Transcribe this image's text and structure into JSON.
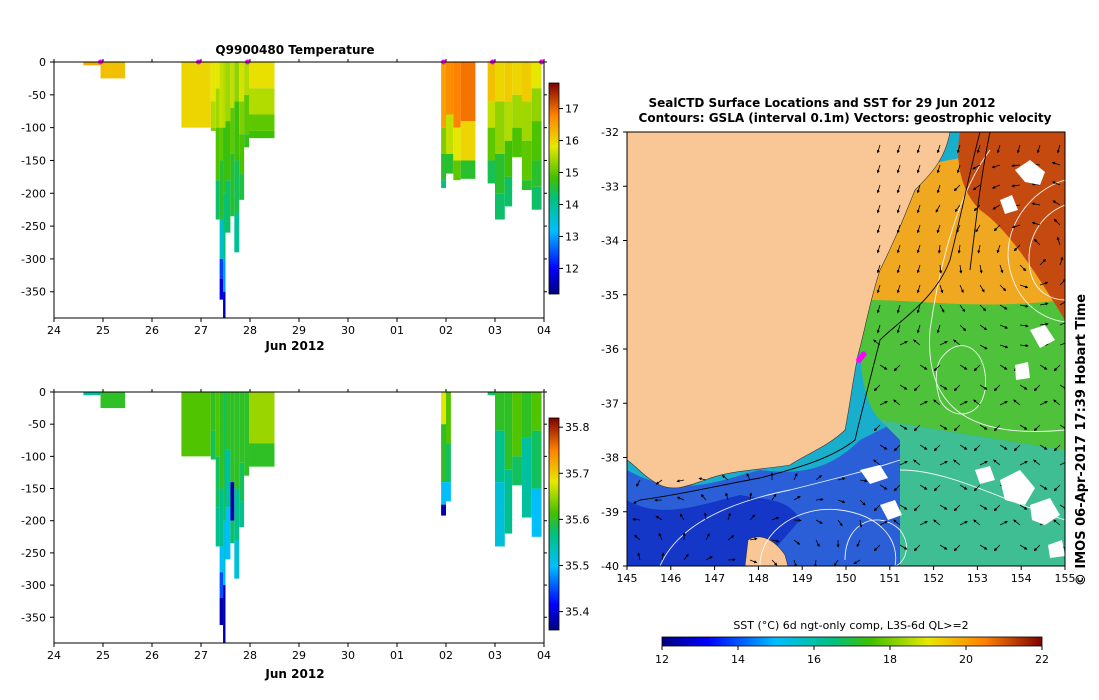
{
  "chart_data": [
    {
      "type": "heatmap",
      "id": "temperature",
      "title": "Q9900480  Temperature",
      "xlabel": "Jun 2012",
      "x_ticks": [
        "24",
        "25",
        "26",
        "27",
        "28",
        "29",
        "30",
        "01",
        "02",
        "03",
        "04"
      ],
      "y_ticks": [
        0,
        -50,
        -100,
        -150,
        -200,
        -250,
        -300,
        -350
      ],
      "ylim": [
        -390,
        0
      ],
      "colorbar": {
        "range": [
          11.2,
          17.8
        ],
        "ticks": [
          12,
          13,
          14,
          15,
          16,
          17
        ]
      },
      "profile_markers_day": [
        0.95,
        2.95,
        3.95,
        7.95,
        8.95,
        9.95
      ],
      "profiles": [
        {
          "x0": 0.6,
          "x1": 0.95,
          "segments": [
            [
              0,
              -5,
              16.4
            ]
          ]
        },
        {
          "x0": 0.95,
          "x1": 1.45,
          "segments": [
            [
              0,
              -25,
              16.2
            ]
          ]
        },
        {
          "x0": 2.6,
          "x1": 3.2,
          "segments": [
            [
              0,
              -100,
              16.0
            ]
          ]
        },
        {
          "x0": 3.2,
          "x1": 3.3,
          "segments": [
            [
              0,
              -60,
              15.8
            ],
            [
              -60,
              -100,
              15.5
            ],
            [
              -100,
              -105,
              15.2
            ]
          ]
        },
        {
          "x0": 3.3,
          "x1": 3.38,
          "segments": [
            [
              0,
              -40,
              15.8
            ],
            [
              -40,
              -100,
              15.4
            ],
            [
              -100,
              -180,
              14.9
            ],
            [
              -180,
              -240,
              14.3
            ]
          ]
        },
        {
          "x0": 3.38,
          "x1": 3.45,
          "segments": [
            [
              0,
              -100,
              15.6
            ],
            [
              -100,
              -150,
              15.0
            ],
            [
              -150,
              -240,
              14.6
            ],
            [
              -240,
              -300,
              13.6
            ],
            [
              -300,
              -330,
              12.4
            ],
            [
              -330,
              -362,
              11.8
            ]
          ]
        },
        {
          "x0": 3.45,
          "x1": 3.5,
          "segments": [
            [
              0,
              -100,
              15.5
            ],
            [
              -100,
              -200,
              14.7
            ],
            [
              -200,
              -300,
              14.2
            ],
            [
              -300,
              -350,
              13.0
            ],
            [
              -350,
              -390,
              11.5
            ]
          ]
        },
        {
          "x0": 3.5,
          "x1": 3.6,
          "segments": [
            [
              0,
              -90,
              15.4
            ],
            [
              -90,
              -180,
              14.8
            ],
            [
              -180,
              -260,
              14.3
            ]
          ]
        },
        {
          "x0": 3.6,
          "x1": 3.68,
          "segments": [
            [
              0,
              -70,
              15.6
            ],
            [
              -70,
              -140,
              15.0
            ],
            [
              -140,
              -235,
              14.6
            ]
          ]
        },
        {
          "x0": 3.68,
          "x1": 3.78,
          "segments": [
            [
              0,
              -60,
              15.3
            ],
            [
              -60,
              -150,
              14.8
            ],
            [
              -150,
              -230,
              14.4
            ],
            [
              -230,
              -290,
              14.0
            ]
          ]
        },
        {
          "x0": 3.78,
          "x1": 3.88,
          "segments": [
            [
              0,
              -60,
              15.7
            ],
            [
              -60,
              -110,
              15.2
            ],
            [
              -110,
              -170,
              14.9
            ],
            [
              -170,
              -210,
              14.5
            ]
          ]
        },
        {
          "x0": 3.88,
          "x1": 3.98,
          "segments": [
            [
              0,
              -50,
              15.5
            ],
            [
              -50,
              -110,
              15.0
            ],
            [
              -110,
              -130,
              14.7
            ]
          ]
        },
        {
          "x0": 3.98,
          "x1": 4.5,
          "segments": [
            [
              0,
              -40,
              15.9
            ],
            [
              -40,
              -80,
              15.5
            ],
            [
              -80,
              -105,
              15.0
            ],
            [
              -105,
              -116,
              14.8
            ]
          ]
        },
        {
          "x0": 7.9,
          "x1": 8.0,
          "segments": [
            [
              0,
              -100,
              16.5
            ],
            [
              -100,
              -140,
              15.2
            ],
            [
              -140,
              -180,
              14.6
            ],
            [
              -180,
              -192,
              14.2
            ]
          ]
        },
        {
          "x0": 8.0,
          "x1": 8.15,
          "segments": [
            [
              0,
              -80,
              16.7
            ],
            [
              -80,
              -140,
              15.6
            ],
            [
              -140,
              -170,
              14.6
            ]
          ]
        },
        {
          "x0": 8.15,
          "x1": 8.3,
          "segments": [
            [
              0,
              -100,
              16.8
            ],
            [
              -100,
              -150,
              15.8
            ],
            [
              -150,
              -180,
              15.0
            ]
          ]
        },
        {
          "x0": 8.3,
          "x1": 8.6,
          "segments": [
            [
              0,
              -90,
              16.9
            ],
            [
              -90,
              -150,
              16.0
            ],
            [
              -150,
              -178,
              14.6
            ]
          ]
        },
        {
          "x0": 8.85,
          "x1": 9.0,
          "segments": [
            [
              0,
              -60,
              16.2
            ],
            [
              -60,
              -100,
              15.6
            ],
            [
              -100,
              -150,
              15.0
            ],
            [
              -150,
              -185,
              14.4
            ]
          ]
        },
        {
          "x0": 9.0,
          "x1": 9.2,
          "segments": [
            [
              0,
              -60,
              16.0
            ],
            [
              -60,
              -140,
              15.3
            ],
            [
              -140,
              -200,
              14.6
            ],
            [
              -200,
              -240,
              14.3
            ]
          ]
        },
        {
          "x0": 9.2,
          "x1": 9.35,
          "segments": [
            [
              0,
              -60,
              16.1
            ],
            [
              -60,
              -120,
              15.5
            ],
            [
              -120,
              -175,
              14.8
            ],
            [
              -175,
              -220,
              14.3
            ]
          ]
        },
        {
          "x0": 9.35,
          "x1": 9.55,
          "segments": [
            [
              0,
              -50,
              16.0
            ],
            [
              -50,
              -100,
              15.4
            ],
            [
              -100,
              -145,
              14.9
            ]
          ]
        },
        {
          "x0": 9.55,
          "x1": 9.75,
          "segments": [
            [
              0,
              -60,
              16.1
            ],
            [
              -60,
              -120,
              15.4
            ],
            [
              -120,
              -180,
              15.0
            ],
            [
              -180,
              -195,
              14.6
            ]
          ]
        },
        {
          "x0": 9.75,
          "x1": 9.95,
          "segments": [
            [
              0,
              -40,
              15.8
            ],
            [
              -40,
              -90,
              15.3
            ],
            [
              -90,
              -150,
              14.9
            ],
            [
              -150,
              -190,
              14.6
            ],
            [
              -190,
              -225,
              14.3
            ]
          ]
        }
      ]
    },
    {
      "type": "heatmap",
      "id": "salinity",
      "title": "",
      "xlabel": "Jun 2012",
      "x_ticks": [
        "24",
        "25",
        "26",
        "27",
        "28",
        "29",
        "30",
        "01",
        "02",
        "03",
        "04"
      ],
      "y_ticks": [
        0,
        -50,
        -100,
        -150,
        -200,
        -250,
        -300,
        -350
      ],
      "ylim": [
        -390,
        0
      ],
      "colorbar": {
        "range": [
          35.36,
          35.82
        ],
        "ticks": [
          35.4,
          35.5,
          35.6,
          35.7,
          35.8
        ]
      },
      "profiles": [
        {
          "x0": 0.6,
          "x1": 0.95,
          "segments": [
            [
              0,
              -5,
              35.55
            ]
          ]
        },
        {
          "x0": 0.95,
          "x1": 1.45,
          "segments": [
            [
              0,
              -25,
              35.6
            ]
          ]
        },
        {
          "x0": 2.6,
          "x1": 3.2,
          "segments": [
            [
              0,
              -100,
              35.62
            ]
          ]
        },
        {
          "x0": 3.2,
          "x1": 3.3,
          "segments": [
            [
              0,
              -60,
              35.6
            ],
            [
              -60,
              -105,
              35.58
            ]
          ]
        },
        {
          "x0": 3.3,
          "x1": 3.38,
          "segments": [
            [
              0,
              -100,
              35.62
            ],
            [
              -100,
              -180,
              35.58
            ],
            [
              -180,
              -240,
              35.56
            ]
          ]
        },
        {
          "x0": 3.38,
          "x1": 3.45,
          "segments": [
            [
              0,
              -150,
              35.6
            ],
            [
              -150,
              -240,
              35.56
            ],
            [
              -240,
              -280,
              35.5
            ],
            [
              -280,
              -320,
              35.45
            ],
            [
              -320,
              -362,
              35.38
            ]
          ]
        },
        {
          "x0": 3.45,
          "x1": 3.5,
          "segments": [
            [
              0,
              -200,
              35.58
            ],
            [
              -200,
              -300,
              35.52
            ],
            [
              -300,
              -390,
              35.38
            ]
          ]
        },
        {
          "x0": 3.5,
          "x1": 3.6,
          "segments": [
            [
              0,
              -90,
              35.6
            ],
            [
              -90,
              -180,
              35.55
            ],
            [
              -180,
              -260,
              35.5
            ]
          ]
        },
        {
          "x0": 3.6,
          "x1": 3.68,
          "segments": [
            [
              0,
              -140,
              35.6
            ],
            [
              -140,
              -200,
              35.38
            ],
            [
              -200,
              -235,
              35.58
            ]
          ]
        },
        {
          "x0": 3.68,
          "x1": 3.78,
          "segments": [
            [
              0,
              -150,
              35.6
            ],
            [
              -150,
              -230,
              35.56
            ],
            [
              -230,
              -290,
              35.52
            ]
          ]
        },
        {
          "x0": 3.78,
          "x1": 3.88,
          "segments": [
            [
              0,
              -110,
              35.6
            ],
            [
              -110,
              -170,
              35.58
            ],
            [
              -170,
              -210,
              35.56
            ]
          ]
        },
        {
          "x0": 3.88,
          "x1": 3.98,
          "segments": [
            [
              0,
              -130,
              35.6
            ]
          ]
        },
        {
          "x0": 3.98,
          "x1": 4.5,
          "segments": [
            [
              0,
              -80,
              35.65
            ],
            [
              -80,
              -116,
              35.6
            ]
          ]
        },
        {
          "x0": 7.9,
          "x1": 8.0,
          "segments": [
            [
              0,
              -50,
              35.68
            ],
            [
              -50,
              -140,
              35.6
            ],
            [
              -140,
              -175,
              35.5
            ],
            [
              -175,
              -192,
              35.38
            ]
          ]
        },
        {
          "x0": 8.0,
          "x1": 8.1,
          "segments": [
            [
              0,
              -80,
              35.62
            ],
            [
              -80,
              -140,
              35.58
            ],
            [
              -140,
              -170,
              35.5
            ]
          ]
        },
        {
          "x0": 8.85,
          "x1": 9.0,
          "segments": [
            [
              0,
              -5,
              35.58
            ]
          ]
        },
        {
          "x0": 9.0,
          "x1": 9.2,
          "segments": [
            [
              0,
              -60,
              35.6
            ],
            [
              -60,
              -140,
              35.56
            ],
            [
              -140,
              -240,
              35.52
            ]
          ]
        },
        {
          "x0": 9.2,
          "x1": 9.35,
          "segments": [
            [
              0,
              -120,
              35.6
            ],
            [
              -120,
              -220,
              35.56
            ]
          ]
        },
        {
          "x0": 9.35,
          "x1": 9.55,
          "segments": [
            [
              0,
              -100,
              35.62
            ],
            [
              -100,
              -145,
              35.58
            ]
          ]
        },
        {
          "x0": 9.55,
          "x1": 9.75,
          "segments": [
            [
              0,
              -70,
              35.6
            ],
            [
              -70,
              -195,
              35.55
            ]
          ]
        },
        {
          "x0": 9.75,
          "x1": 9.95,
          "segments": [
            [
              0,
              -60,
              35.62
            ],
            [
              -60,
              -150,
              35.58
            ],
            [
              -150,
              -225,
              35.5
            ]
          ]
        }
      ]
    },
    {
      "type": "heatmap",
      "id": "sst_map",
      "title_line1": "SealCTD Surface Locations and SST for 29 Jun 2012",
      "title_line2": "Contours: GSLA (interval 0.1m) Vectors: geostrophic velocity",
      "x_ticks": [
        "145",
        "146",
        "147",
        "148",
        "149",
        "150",
        "151",
        "152",
        "153",
        "154",
        "155"
      ],
      "y_ticks": [
        "-32",
        "-33",
        "-34",
        "-35",
        "-36",
        "-37",
        "-38",
        "-39",
        "-40"
      ],
      "xlim": [
        145,
        155
      ],
      "ylim": [
        -40,
        -32
      ],
      "colorbar": {
        "label": "SST (°C) 6d ngt-only comp, L3S-6d QL>=2",
        "range": [
          12,
          22
        ],
        "ticks": [
          "12",
          "14",
          "16",
          "18",
          "20",
          "22"
        ]
      },
      "surface_locations": [
        [
          150.3,
          -36.2
        ],
        [
          150.35,
          -36.15
        ],
        [
          150.4,
          -36.1
        ]
      ],
      "credit": "© IMOS 06-Apr-2017 17:39 Hobart Time"
    }
  ]
}
